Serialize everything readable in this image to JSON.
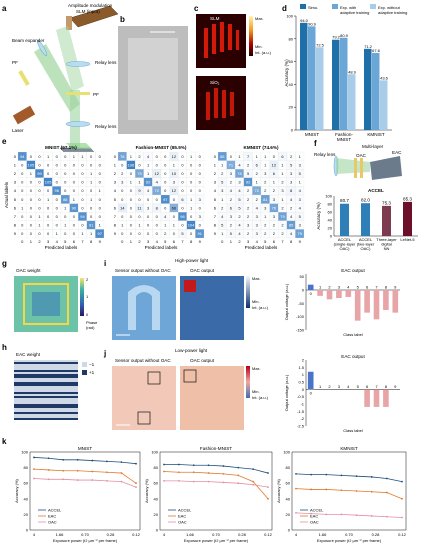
{
  "panels": {
    "a": {
      "letter": "a",
      "labels": {
        "amp_mod": "Amplitude modulation",
        "slm": "SLM (input)",
        "beam_exp": "Beam expander",
        "pf1": "PF",
        "relay1": "Relay lens",
        "pf2": "PF",
        "laser": "Laser",
        "relay2": "Relay lens",
        "accel": "ACCEL"
      }
    },
    "b": {
      "letter": "b"
    },
    "c": {
      "letter": "c",
      "slm": "SLM",
      "sio2": "SiO₂",
      "cbar_max": "Max.",
      "cbar_min": "Min.",
      "cbar_unit": "Int. (a.u.)"
    },
    "d": {
      "letter": "d"
    },
    "e": {
      "letter": "e"
    },
    "f": {
      "letter": "f",
      "relay": "Relay lens",
      "multi": "Multi-layer",
      "oac": "OAC",
      "eac": "EAC",
      "accel": "ACCEL"
    },
    "g": {
      "letter": "g",
      "title": "OAC weight",
      "cbar_ticks": [
        "2",
        "1",
        "0"
      ],
      "cbar_label": "Phase",
      "cbar_unit": "(rad)"
    },
    "h": {
      "letter": "h",
      "title": "EAC weight",
      "legend": [
        "−1",
        "+1"
      ]
    },
    "i": {
      "letter": "i",
      "header": "High-power light",
      "sub1": "Sensor output without OAC",
      "sub2": "OAC output",
      "cbar_max": "Max.",
      "cbar_min": "Min.",
      "cbar_unit": "Int. (a.u.)"
    },
    "j": {
      "letter": "j",
      "header": "Low-power light",
      "sub1": "Sensor output without OAC",
      "sub2": "OAC output",
      "cbar_max": "Max.",
      "cbar_min": "Min.",
      "cbar_unit": "Int. (a.u.)"
    },
    "k": {
      "letter": "k"
    }
  },
  "confusion": {
    "ylabel": "Actual labels",
    "xlabel": "Predicted labels",
    "ticks": [
      "0",
      "1",
      "2",
      "3",
      "4",
      "5",
      "6",
      "7",
      "8",
      "9"
    ],
    "matrices": [
      {
        "title": "MNIST (97.1%)",
        "rows": [
          [
            94,
            0,
            0,
            1,
            0,
            0,
            1,
            1,
            0,
            0
          ],
          [
            0,
            105,
            0,
            0,
            0,
            0,
            0,
            0,
            0,
            0
          ],
          [
            0,
            1,
            99,
            0,
            0,
            0,
            0,
            0,
            1,
            0
          ],
          [
            0,
            0,
            0,
            105,
            0,
            0,
            0,
            0,
            1,
            0
          ],
          [
            0,
            0,
            0,
            0,
            96,
            0,
            0,
            0,
            0,
            1
          ],
          [
            0,
            0,
            0,
            1,
            0,
            88,
            1,
            0,
            1,
            0
          ],
          [
            1,
            0,
            0,
            0,
            0,
            1,
            90,
            0,
            0,
            0
          ],
          [
            0,
            0,
            1,
            0,
            0,
            0,
            0,
            94,
            0,
            0
          ],
          [
            0,
            0,
            1,
            0,
            0,
            1,
            0,
            0,
            91,
            1
          ],
          [
            0,
            0,
            0,
            0,
            1,
            0,
            0,
            1,
            1,
            97
          ]
        ]
      },
      {
        "title": "Fashion-MNIST (85.5%)",
        "rows": [
          [
            78,
            1,
            2,
            4,
            0,
            0,
            12,
            0,
            1,
            0
          ],
          [
            0,
            106,
            0,
            1,
            0,
            0,
            1,
            0,
            0,
            0
          ],
          [
            2,
            0,
            75,
            1,
            12,
            0,
            10,
            0,
            0,
            0
          ],
          [
            3,
            1,
            1,
            92,
            4,
            0,
            3,
            0,
            0,
            0
          ],
          [
            0,
            0,
            9,
            4,
            72,
            0,
            12,
            0,
            0,
            0
          ],
          [
            0,
            0,
            0,
            0,
            0,
            97,
            0,
            6,
            1,
            3
          ],
          [
            14,
            0,
            11,
            3,
            8,
            0,
            66,
            0,
            1,
            0
          ],
          [
            0,
            0,
            0,
            0,
            0,
            4,
            0,
            96,
            0,
            3
          ],
          [
            1,
            0,
            1,
            0,
            0,
            1,
            1,
            0,
            104,
            0
          ],
          [
            0,
            0,
            0,
            0,
            0,
            2,
            0,
            5,
            0,
            91
          ]
        ]
      },
      {
        "title": "KMNIST (74.6%)",
        "rows": [
          [
            85,
            0,
            1,
            7,
            1,
            1,
            0,
            6,
            2,
            1
          ],
          [
            1,
            71,
            4,
            2,
            6,
            1,
            12,
            1,
            5,
            3
          ],
          [
            2,
            3,
            78,
            5,
            2,
            3,
            6,
            1,
            3,
            5
          ],
          [
            5,
            2,
            3,
            92,
            1,
            2,
            1,
            2,
            3,
            1
          ],
          [
            3,
            4,
            4,
            2,
            72,
            2,
            2,
            3,
            8,
            4
          ],
          [
            1,
            2,
            5,
            2,
            2,
            81,
            3,
            1,
            4,
            3
          ],
          [
            2,
            6,
            5,
            2,
            4,
            3,
            76,
            2,
            2,
            4
          ],
          [
            4,
            3,
            2,
            2,
            3,
            1,
            3,
            79,
            4,
            5
          ],
          [
            5,
            2,
            4,
            3,
            3,
            2,
            2,
            2,
            85,
            3
          ],
          [
            1,
            5,
            4,
            2,
            3,
            2,
            2,
            2,
            4,
            79
          ]
        ]
      }
    ]
  },
  "chart_data": [
    {
      "type": "bar",
      "id": "d",
      "ylabel": "Accuracy (%)",
      "categories": [
        "MNIST",
        "Fashion-MNIST",
        "KMNIST"
      ],
      "ylim": [
        0,
        100
      ],
      "yticks": [
        0,
        20,
        40,
        60,
        80,
        100
      ],
      "series": [
        {
          "name": "Simu.",
          "color": "#1f6fa8",
          "values": [
            94.0,
            79.2,
            71.2
          ]
        },
        {
          "name": "Exp. with adaptive training",
          "color": "#6aa6d6",
          "values": [
            90.9,
            80.9,
            67.6
          ]
        },
        {
          "name": "Exp. without adaptive training",
          "color": "#a9cde9",
          "values": [
            72.5,
            48.9,
            43.6
          ]
        }
      ],
      "value_labels": [
        [
          "94.0",
          "90.9",
          "72.5"
        ],
        [
          "79.2",
          "80.9",
          "48.9"
        ],
        [
          "71.2",
          "67.6",
          "43.6"
        ]
      ]
    },
    {
      "type": "bar",
      "id": "f",
      "ylabel": "Accuracy (%)",
      "ylim": [
        0,
        100
      ],
      "yticks": [
        0,
        20,
        40,
        60,
        80,
        100
      ],
      "categories": [
        "ACCEL (single-layer OAC)",
        "ACCEL (two-layer OAC)",
        "Three-layer digital NN",
        "LeNet-5"
      ],
      "values": [
        80.7,
        82.0,
        75.3,
        85.3
      ],
      "value_labels": [
        "80.7",
        "82.0",
        "75.3",
        "85.3"
      ],
      "colors": [
        "#2e7fb8",
        "#2e7fb8",
        "#7d3b4f",
        "#6b0f2a"
      ]
    },
    {
      "type": "bar",
      "id": "i_eac",
      "title": "EAC output",
      "ylabel": "Output voltage (a.u.)",
      "xlabel": "Class label",
      "categories": [
        "0",
        "1",
        "2",
        "3",
        "4",
        "5",
        "6",
        "7",
        "8",
        "9"
      ],
      "ylim": [
        -150,
        60
      ],
      "yticks": [
        50,
        0,
        -50,
        -100,
        -150
      ],
      "values": [
        20,
        -22,
        -35,
        -30,
        -26,
        -115,
        -85,
        -110,
        -75,
        -85
      ],
      "colors": [
        "#4a74c9",
        "#e8a5a8",
        "#e8a5a8",
        "#e8a5a8",
        "#e8a5a8",
        "#e8a5a8",
        "#e8a5a8",
        "#e8a5a8",
        "#e8a5a8",
        "#e8a5a8"
      ]
    },
    {
      "type": "bar",
      "id": "j_eac",
      "title": "EAC output",
      "ylabel": "Output voltage (a.u.)",
      "xlabel": "Class label",
      "categories": [
        "0",
        "1",
        "2",
        "3",
        "4",
        "5",
        "6",
        "7",
        "8",
        "9"
      ],
      "ylim": [
        -2.5,
        2
      ],
      "yticks": [
        2.0,
        1.5,
        1.0,
        0.5,
        0,
        -0.5,
        -1.0,
        -1.5,
        -2.0,
        -2.5
      ],
      "values": [
        1.2,
        0,
        0,
        0,
        0,
        0,
        -1.2,
        -1.2,
        -1.2,
        0
      ],
      "colors": [
        "#4a74c9",
        "#e8a5a8",
        "#e8a5a8",
        "#e8a5a8",
        "#e8a5a8",
        "#e8a5a8",
        "#e8a5a8",
        "#e8a5a8",
        "#e8a5a8",
        "#e8a5a8"
      ]
    },
    {
      "type": "line",
      "id": "k",
      "xlabel": "Exposure power (fJ μm⁻² per frame)",
      "ylabel": "Accuracy (%)",
      "xticks": [
        "4",
        "1.66",
        "0.70",
        "0.28",
        "0.12"
      ],
      "ylim": [
        0,
        100
      ],
      "yticks": [
        0,
        20,
        40,
        60,
        80,
        100
      ],
      "legend": [
        "ACCEL",
        "EAC",
        "OAC"
      ],
      "colors": [
        "#1f4e79",
        "#e07a2e",
        "#e58fa3"
      ],
      "panels": [
        {
          "title": "MNIST",
          "series": [
            {
              "name": "ACCEL",
              "values": [
                93,
                92,
                90,
                90,
                89,
                88,
                87,
                85
              ]
            },
            {
              "name": "EAC",
              "values": [
                78,
                77,
                76,
                76,
                75,
                74,
                73,
                60
              ]
            },
            {
              "name": "OAC",
              "values": [
                66,
                65,
                65,
                64,
                64,
                63,
                62,
                55
              ]
            }
          ]
        },
        {
          "title": "Fashion-MNIST",
          "series": [
            {
              "name": "ACCEL",
              "values": [
                84,
                84,
                83,
                83,
                82,
                80,
                78,
                73
              ]
            },
            {
              "name": "EAC",
              "values": [
                75,
                74,
                74,
                73,
                72,
                70,
                62,
                40
              ]
            },
            {
              "name": "OAC",
              "values": [
                63,
                63,
                62,
                62,
                61,
                60,
                58,
                55
              ]
            }
          ]
        },
        {
          "title": "KMNIST",
          "series": [
            {
              "name": "ACCEL",
              "values": [
                72,
                71,
                71,
                70,
                69,
                68,
                66,
                62
              ]
            },
            {
              "name": "EAC",
              "values": [
                53,
                52,
                52,
                51,
                50,
                49,
                48,
                40
              ]
            },
            {
              "name": "OAC",
              "values": [
                22,
                21,
                20,
                20,
                19,
                18,
                17,
                16
              ]
            }
          ]
        }
      ]
    }
  ]
}
